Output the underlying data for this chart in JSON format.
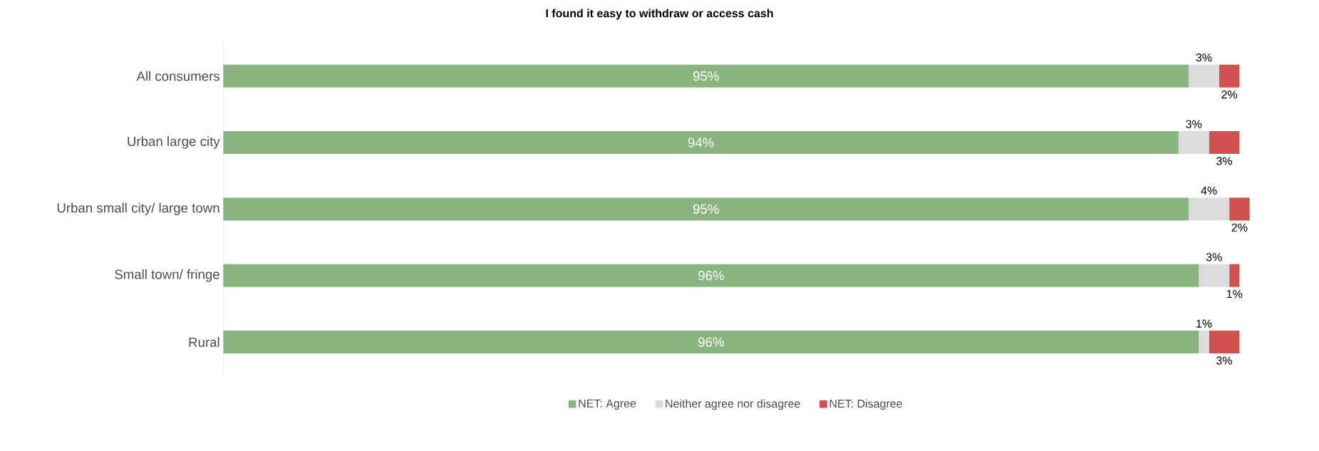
{
  "chart_data": {
    "type": "bar",
    "orientation": "horizontal",
    "stacked": true,
    "title": "I found it easy to withdraw or access cash",
    "categories": [
      "All consumers",
      "Urban large city",
      "Urban small city/ large town",
      "Small town/ fringe",
      "Rural"
    ],
    "xlim": [
      0,
      101
    ],
    "tick_labels": "y",
    "legend": "bottom",
    "series": [
      {
        "name": "NET: Agree",
        "color": "#8ab47f",
        "values": [
          95,
          94,
          95,
          96,
          96
        ],
        "value_labels": [
          "95%",
          "94%",
          "95%",
          "96%",
          "96%"
        ]
      },
      {
        "name": "Neither agree nor disagree",
        "color": "#dcdcdc",
        "values": [
          3,
          3,
          4,
          3,
          1
        ],
        "value_labels": [
          "3%",
          "3%",
          "4%",
          "3%",
          "1%"
        ]
      },
      {
        "name": "NET: Disagree",
        "color": "#d0504e",
        "values": [
          2,
          3,
          2,
          1,
          3
        ],
        "value_labels": [
          "2%",
          "3%",
          "2%",
          "1%",
          "3%"
        ]
      }
    ]
  }
}
